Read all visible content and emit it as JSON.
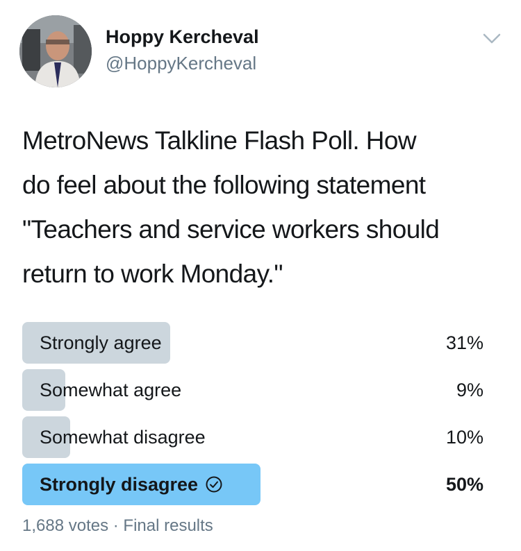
{
  "author": {
    "name": "Hoppy Kercheval",
    "handle": "@HoppyKercheval",
    "avatar_icon": "profile-photo"
  },
  "menu": {
    "icon": "chevron-down-icon"
  },
  "tweet": {
    "text": "MetroNews Talkline Flash Poll.  How\ndo feel about the following statement\n\"Teachers and service workers should\nreturn to work Monday.\""
  },
  "poll": {
    "options": [
      {
        "label": "Strongly agree",
        "percent_text": "31%",
        "percent": 31,
        "winner": false
      },
      {
        "label": "Somewhat agree",
        "percent_text": "9%",
        "percent": 9,
        "winner": false
      },
      {
        "label": "Somewhat disagree",
        "percent_text": "10%",
        "percent": 10,
        "winner": false
      },
      {
        "label": "Strongly disagree",
        "percent_text": "50%",
        "percent": 50,
        "winner": true
      }
    ],
    "votes": "1,688 votes",
    "separator": " · ",
    "status": "Final results"
  },
  "colors": {
    "bar": "#ccd6dd",
    "winner_bar": "#77c7f7",
    "text": "#14171a",
    "muted": "#657786"
  }
}
